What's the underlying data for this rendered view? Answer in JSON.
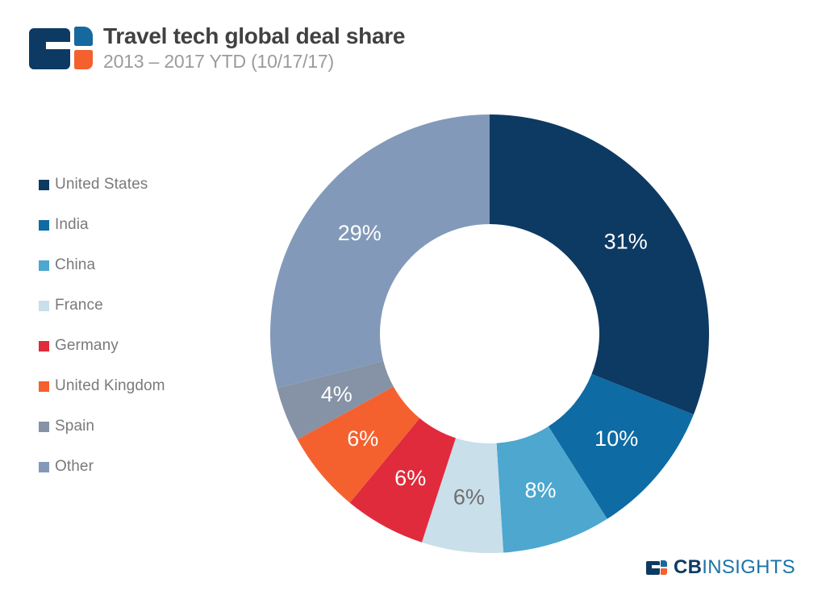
{
  "header": {
    "title": "Travel tech global deal share",
    "subtitle": "2013 – 2017 YTD (10/17/17)"
  },
  "footer": {
    "brand_bold": "CB",
    "brand_light": "INSIGHTS"
  },
  "colors": {
    "navy": "#0d3a63",
    "logo_blue": "#16699e",
    "orange": "#f4612f",
    "insights_blue": "#1b74a6",
    "title_gray": "#414042",
    "subtitle_gray": "#9b9b9b",
    "legend_gray": "#7a7a7a"
  },
  "chart_data": {
    "type": "pie",
    "donut": true,
    "title": "Travel tech global deal share",
    "subtitle": "2013 – 2017 YTD (10/17/17)",
    "unit": "%",
    "start_angle_deg": 0,
    "direction": "clockwise",
    "hole_radius_ratio": 0.5,
    "legend_position": "left",
    "categories": [
      "United States",
      "India",
      "China",
      "France",
      "Germany",
      "United Kingdom",
      "Spain",
      "Other"
    ],
    "values": [
      31,
      10,
      8,
      6,
      6,
      6,
      4,
      29
    ],
    "colors": [
      "#0d3a63",
      "#0e6ba3",
      "#4da7cf",
      "#c9dfe9",
      "#e02b3c",
      "#f4612f",
      "#8692a5",
      "#8399b9"
    ],
    "label_colors": [
      "#ffffff",
      "#ffffff",
      "#ffffff",
      "#6e6e6e",
      "#ffffff",
      "#ffffff",
      "#ffffff",
      "#ffffff"
    ]
  }
}
